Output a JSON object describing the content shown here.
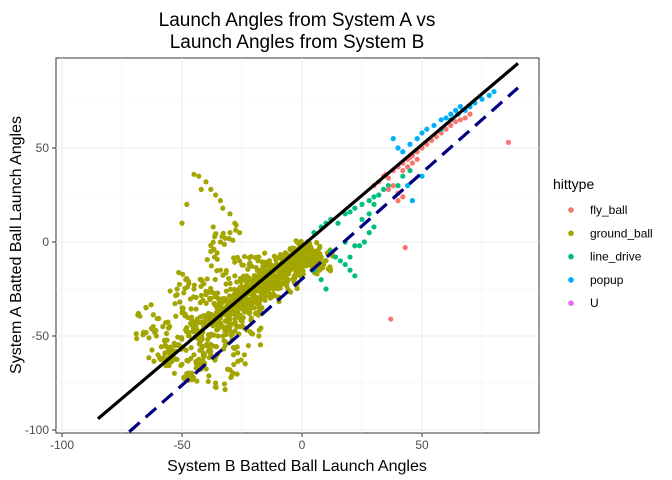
{
  "chart_data": {
    "type": "scatter",
    "title_lines": [
      "Launch Angles from System A vs",
      "Launch Angles from System B"
    ],
    "xlabel": "System B Batted Ball Launch Angles",
    "ylabel": "System A Batted Ball Launch Angles",
    "xlim": [
      -100,
      100
    ],
    "ylim": [
      -100,
      100
    ],
    "x_ticks": [
      -100,
      -50,
      0,
      50
    ],
    "y_ticks": [
      -100,
      -50,
      0,
      50
    ],
    "x_tick_labels": [
      "-100",
      "-50",
      "0",
      "50"
    ],
    "y_tick_labels": [
      "-100",
      "-50",
      "0",
      "50"
    ],
    "grid": true,
    "legend": {
      "title": "hittype",
      "placement": "right",
      "entries": [
        {
          "label": "fly_ball",
          "color": "#F8766D"
        },
        {
          "label": "ground_ball",
          "color": "#A3A500"
        },
        {
          "label": "line_drive",
          "color": "#00BF7D"
        },
        {
          "label": "popup",
          "color": "#00B0F6"
        },
        {
          "label": "U",
          "color": "#E76BF3"
        }
      ]
    },
    "series": [
      {
        "name": "ground_ball",
        "color": "#A3A500",
        "x": [
          -48,
          -50,
          -45,
          -42,
          -40,
          -38,
          -36,
          -33,
          -30,
          -28,
          -26,
          -24,
          -22,
          -20,
          -18,
          -16,
          -14,
          -12,
          -10,
          -8,
          -6,
          -4,
          -2,
          0,
          2,
          4,
          6,
          8,
          10,
          -55,
          -52,
          -47,
          -44,
          -41,
          -37,
          -34,
          -31,
          -29,
          -27,
          -25,
          -23,
          -21,
          -19,
          -17,
          -15,
          -13,
          -11,
          -9,
          -7,
          -5,
          -3,
          -1,
          1,
          3,
          5,
          -60,
          -58,
          -53,
          -46,
          -39,
          -35,
          -32,
          -28,
          -24,
          -20,
          -16,
          -12,
          -8,
          -4,
          0,
          4,
          8,
          -50,
          -45,
          -40,
          -35,
          -30,
          -25,
          -20,
          -15,
          -10,
          -5,
          0,
          5,
          -65,
          -62,
          -57,
          -43,
          -38,
          -33,
          -27,
          -22,
          -17,
          -12,
          -7,
          -2,
          3,
          -48,
          -44,
          -38,
          -32,
          -26,
          -18,
          -12,
          -6,
          -66,
          -56,
          -46,
          -36,
          -30,
          -24,
          -18,
          -52,
          -42,
          -34,
          -28,
          -22,
          -16,
          -10,
          -4,
          2,
          -45,
          -40,
          -35,
          -30,
          -25,
          -20,
          -15,
          -10,
          -5,
          -38,
          -34,
          -30,
          -26,
          -22,
          -18,
          -14,
          -10,
          -6,
          -2
        ],
        "y": [
          -20,
          -35,
          -45,
          -50,
          -40,
          -30,
          -42,
          -38,
          -35,
          -32,
          -30,
          -28,
          -25,
          -22,
          -20,
          -18,
          -16,
          -14,
          -12,
          -10,
          -9,
          -8,
          -6,
          -5,
          -8,
          -10,
          -6,
          -8,
          -10,
          -60,
          -55,
          -50,
          -48,
          -45,
          -42,
          -40,
          -38,
          -36,
          -34,
          -32,
          -30,
          -28,
          -26,
          -24,
          -22,
          -20,
          -18,
          -16,
          -14,
          -12,
          -10,
          -8,
          -6,
          -4,
          -5,
          -60,
          -45,
          -55,
          -40,
          -38,
          -45,
          -35,
          -30,
          -25,
          -22,
          -20,
          -15,
          -12,
          -8,
          -4,
          -10,
          -14,
          -65,
          -60,
          -55,
          -50,
          -45,
          -40,
          -35,
          -25,
          -20,
          -15,
          -10,
          -12,
          -35,
          -45,
          -55,
          -65,
          -58,
          -50,
          -45,
          -38,
          -30,
          -25,
          -18,
          -14,
          -12,
          -70,
          -65,
          -60,
          -55,
          -45,
          -35,
          -28,
          -20,
          -48,
          -62,
          -72,
          -75,
          -68,
          -60,
          -50,
          -28,
          -20,
          -15,
          -18,
          -20,
          -22,
          -18,
          -14,
          -10,
          -25,
          -28,
          -30,
          -32,
          -28,
          -25,
          -22,
          -18,
          -15,
          -5,
          0,
          5,
          -10,
          -12,
          -8,
          -15,
          -18,
          -20,
          -22
        ]
      },
      {
        "name": "ground_ball_high",
        "color": "#A3A500",
        "x": [
          -45,
          -43,
          -40,
          -38,
          -36,
          -34,
          -33,
          -30,
          -28,
          -26,
          -48,
          -50,
          -42,
          -37,
          -32
        ],
        "y": [
          36,
          35,
          32,
          28,
          25,
          22,
          18,
          15,
          10,
          5,
          20,
          10,
          28,
          8,
          2
        ]
      },
      {
        "name": "line_drive",
        "color": "#00BF7D",
        "x": [
          5,
          8,
          10,
          12,
          15,
          18,
          20,
          22,
          25,
          28,
          30,
          32,
          34,
          36,
          12,
          14,
          16,
          18,
          20,
          22,
          24,
          26,
          28,
          30,
          25,
          28,
          30,
          5,
          8,
          10,
          40,
          42,
          45,
          20,
          22,
          18
        ],
        "y": [
          5,
          8,
          10,
          12,
          10,
          15,
          16,
          18,
          20,
          22,
          24,
          25,
          28,
          30,
          -5,
          -8,
          -10,
          -12,
          -15,
          -18,
          -2,
          0,
          5,
          8,
          12,
          15,
          20,
          -15,
          -20,
          -25,
          30,
          35,
          38,
          -8,
          -2,
          0
        ],
        "legend_color": "#00BF7D"
      },
      {
        "name": "fly_ball",
        "color": "#F8766D",
        "x": [
          30,
          32,
          34,
          35,
          36,
          38,
          40,
          42,
          44,
          45,
          46,
          48,
          50,
          52,
          54,
          56,
          58,
          60,
          62,
          64,
          66,
          68,
          70,
          36,
          38,
          40,
          42,
          44,
          46,
          48,
          40,
          42,
          86,
          37,
          43
        ],
        "y": [
          30,
          32,
          35,
          36,
          34,
          38,
          40,
          42,
          44,
          45,
          46,
          48,
          50,
          52,
          54,
          56,
          58,
          60,
          62,
          64,
          65,
          66,
          68,
          28,
          30,
          26,
          38,
          40,
          42,
          44,
          22,
          24,
          53,
          -41,
          -3
        ]
      },
      {
        "name": "popup",
        "color": "#00B0F6",
        "x": [
          40,
          42,
          45,
          48,
          50,
          52,
          55,
          58,
          60,
          62,
          64,
          66,
          68,
          70,
          72,
          75,
          78,
          80,
          62,
          58,
          65,
          70,
          38,
          44,
          46,
          50
        ],
        "y": [
          50,
          48,
          52,
          55,
          58,
          60,
          62,
          65,
          66,
          68,
          70,
          72,
          70,
          72,
          74,
          76,
          78,
          80,
          65,
          60,
          68,
          72,
          55,
          30,
          22,
          35
        ]
      }
    ],
    "lines": [
      {
        "name": "identity",
        "style": "solid",
        "color": "#000000",
        "x": [
          -85,
          90
        ],
        "y": [
          -94,
          95
        ]
      },
      {
        "name": "fit",
        "style": "dashed",
        "color": "#000080",
        "x": [
          -72,
          90
        ],
        "y": [
          -101,
          82
        ]
      }
    ]
  }
}
